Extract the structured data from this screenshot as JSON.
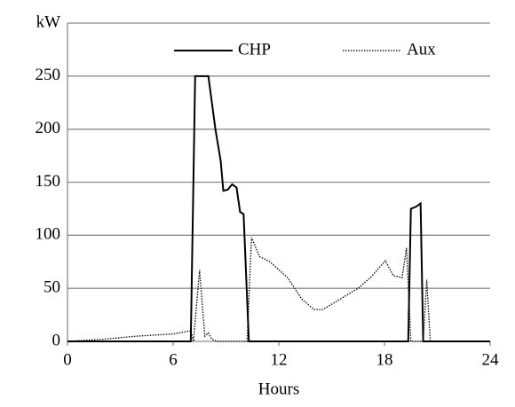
{
  "chart_data": {
    "type": "line",
    "x_label": "Hours",
    "xlim": [
      0,
      24
    ],
    "xticks": [
      0,
      6,
      12,
      18,
      24
    ],
    "ylim": [
      0,
      300
    ],
    "yticks": [
      0,
      50,
      100,
      150,
      200,
      250,
      {
        "value": 300,
        "label": "kW"
      }
    ],
    "grid": true,
    "legend": "top",
    "series": [
      {
        "name": "CHP",
        "color": "#000000",
        "style": "solid",
        "x": [
          0,
          7,
          7.25,
          8,
          8.4,
          8.7,
          8.85,
          9.1,
          9.35,
          9.6,
          9.8,
          10,
          10.3,
          19.35,
          19.5,
          19.8,
          20.05,
          20.2,
          24
        ],
        "values": [
          0,
          0,
          250,
          250,
          200,
          170,
          142,
          143,
          148,
          145,
          122,
          120,
          0,
          0,
          125,
          127,
          130,
          0,
          0
        ]
      },
      {
        "name": "Aux",
        "color": "#000000",
        "style": "dotted",
        "x": [
          0,
          2,
          4,
          6,
          7,
          7.15,
          7.5,
          7.8,
          8,
          8.2,
          8.5,
          10.2,
          10.45,
          10.9,
          11.5,
          12.5,
          13.3,
          14,
          14.5,
          15.5,
          16.5,
          17.2,
          18.05,
          18.5,
          19,
          19.25,
          19.5,
          20.2,
          20.4,
          20.6,
          24
        ],
        "values": [
          0,
          2,
          5,
          7,
          10,
          0,
          67,
          5,
          8,
          2,
          0,
          0,
          98,
          80,
          75,
          60,
          40,
          30,
          30,
          40,
          50,
          60,
          76,
          62,
          60,
          88,
          0,
          0,
          58,
          0,
          0
        ]
      }
    ]
  }
}
